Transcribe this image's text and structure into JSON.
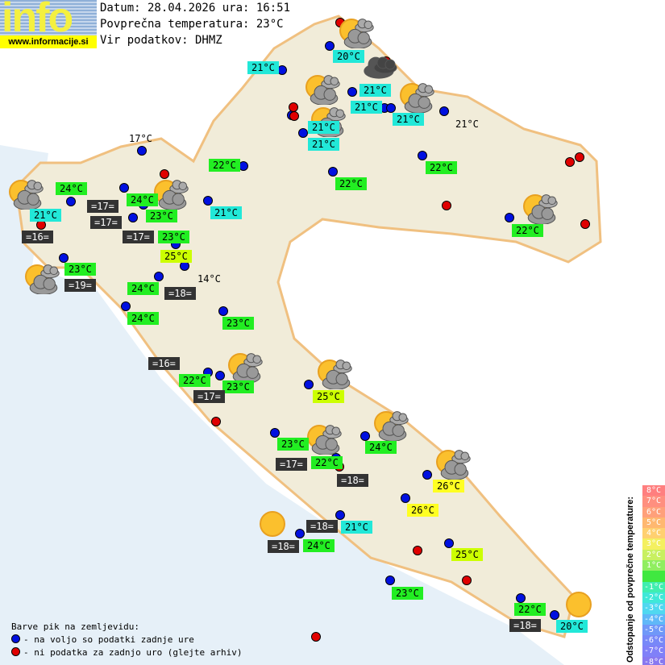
{
  "header": {
    "logo_text": "info",
    "logo_url": "www.informacije.si",
    "date_line": "Datum: 28.04.2026 ura: 16:51",
    "avg_line": "Povprečna temperatura: 23°C",
    "source_line": "Vir podatkov: DHMZ"
  },
  "colors": {
    "cyan": "#22e8d8",
    "green": "#22ee22",
    "yellowgreen": "#ccff00",
    "yellow": "#ffff22",
    "dark": "#333333",
    "blue_dot": "#0010e0",
    "red_dot": "#e00000"
  },
  "stations": [
    {
      "text": "20°C",
      "kind": "cyan"
    },
    {
      "text": "21°C",
      "kind": "cyan"
    },
    {
      "text": "21°C",
      "kind": "cyan"
    },
    {
      "text": "21°C",
      "kind": "cyan"
    },
    {
      "text": "21°C",
      "kind": "cyan"
    },
    {
      "text": "21°C",
      "kind": "plain"
    },
    {
      "text": "21°C",
      "kind": "cyan"
    },
    {
      "text": "21°C",
      "kind": "cyan"
    },
    {
      "text": "17°C",
      "kind": "plain"
    },
    {
      "text": "22°C",
      "kind": "green"
    },
    {
      "text": "22°C",
      "kind": "green"
    },
    {
      "text": "22°C",
      "kind": "green"
    },
    {
      "text": "24°C",
      "kind": "green"
    },
    {
      "text": "24°C",
      "kind": "green"
    },
    {
      "text": "=17=",
      "kind": "dark"
    },
    {
      "text": "21°C",
      "kind": "cyan"
    },
    {
      "text": "21°C",
      "kind": "cyan"
    },
    {
      "text": "=17=",
      "kind": "dark"
    },
    {
      "text": "23°C",
      "kind": "green"
    },
    {
      "text": "23°C",
      "kind": "green"
    },
    {
      "text": "=17=",
      "kind": "dark"
    },
    {
      "text": "22°C",
      "kind": "green"
    },
    {
      "text": "=16=",
      "kind": "dark"
    },
    {
      "text": "25°C",
      "kind": "yg"
    },
    {
      "text": "23°C",
      "kind": "green"
    },
    {
      "text": "=19=",
      "kind": "dark"
    },
    {
      "text": "14°C",
      "kind": "plain"
    },
    {
      "text": "24°C",
      "kind": "green"
    },
    {
      "text": "=18=",
      "kind": "dark"
    },
    {
      "text": "24°C",
      "kind": "green"
    },
    {
      "text": "23°C",
      "kind": "green"
    },
    {
      "text": "=16=",
      "kind": "dark"
    },
    {
      "text": "22°C",
      "kind": "green"
    },
    {
      "text": "23°C",
      "kind": "green"
    },
    {
      "text": "=17=",
      "kind": "dark"
    },
    {
      "text": "25°C",
      "kind": "yg"
    },
    {
      "text": "23°C",
      "kind": "green"
    },
    {
      "text": "24°C",
      "kind": "green"
    },
    {
      "text": "=17=",
      "kind": "dark"
    },
    {
      "text": "22°C",
      "kind": "green"
    },
    {
      "text": "=18=",
      "kind": "dark"
    },
    {
      "text": "26°C",
      "kind": "yellow"
    },
    {
      "text": "26°C",
      "kind": "yellow"
    },
    {
      "text": "=18=",
      "kind": "dark"
    },
    {
      "text": "21°C",
      "kind": "cyan"
    },
    {
      "text": "=18=",
      "kind": "dark"
    },
    {
      "text": "24°C",
      "kind": "green"
    },
    {
      "text": "25°C",
      "kind": "yg"
    },
    {
      "text": "23°C",
      "kind": "green"
    },
    {
      "text": "22°C",
      "kind": "green"
    },
    {
      "text": "=18=",
      "kind": "dark"
    },
    {
      "text": "20°C",
      "kind": "cyan"
    }
  ],
  "weather_icons": [
    "partly-cloudy-icon",
    "overcast-cloud-icon",
    "partly-cloudy-icon",
    "partly-cloudy-icon",
    "partly-cloudy-icon",
    "partly-cloudy-icon",
    "partly-cloudy-icon",
    "partly-cloudy-icon",
    "partly-cloudy-icon",
    "partly-cloudy-icon",
    "partly-cloudy-icon",
    "partly-cloudy-icon",
    "partly-cloudy-icon",
    "partly-cloudy-icon",
    "sun-icon",
    "sun-icon"
  ],
  "legend": {
    "title": "Barve pik na zemljevidu:",
    "blue": "- na voljo so podatki zadnje ure",
    "red": "- ni podatka za zadnjo uro (glejte arhiv)"
  },
  "scale": {
    "title": "Odstopanje od povprečne temperature:",
    "steps": [
      {
        "label": "8°C",
        "color": "#ff7f7f"
      },
      {
        "label": "7°C",
        "color": "#ff8f7f"
      },
      {
        "label": "6°C",
        "color": "#ffa07a"
      },
      {
        "label": "5°C",
        "color": "#ffb870"
      },
      {
        "label": "4°C",
        "color": "#ffd070"
      },
      {
        "label": "3°C",
        "color": "#f4f060"
      },
      {
        "label": "2°C",
        "color": "#c8f060"
      },
      {
        "label": "1°C",
        "color": "#90ee60"
      },
      {
        "label": "",
        "color": "#40e840"
      },
      {
        "label": "-1°C",
        "color": "#40eeb0"
      },
      {
        "label": "-2°C",
        "color": "#40e8d8"
      },
      {
        "label": "-3°C",
        "color": "#50d8f0"
      },
      {
        "label": "-4°C",
        "color": "#60b8f8"
      },
      {
        "label": "-5°C",
        "color": "#7098f8"
      },
      {
        "label": "-6°C",
        "color": "#7888f8"
      },
      {
        "label": "-7°C",
        "color": "#8080f8"
      },
      {
        "label": "-8°C",
        "color": "#8878f0"
      }
    ]
  }
}
